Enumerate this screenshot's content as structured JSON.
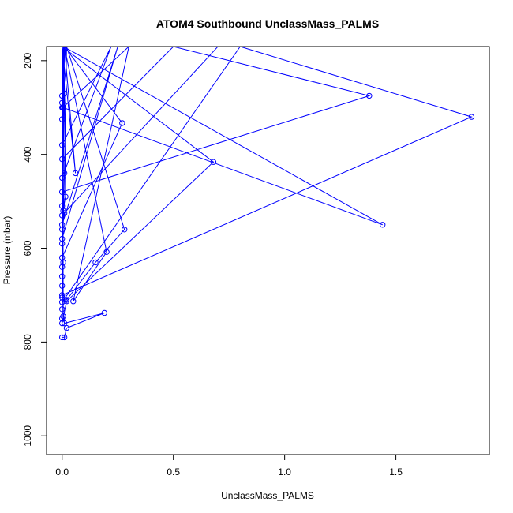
{
  "chart_data": {
    "type": "line",
    "title": "ATOM4 Southbound UnclassMass_PALMS",
    "xlabel": "UnclassMass_PALMS",
    "ylabel": "Pressure (mbar)",
    "xlim": [
      -0.07,
      1.92
    ],
    "ylim": [
      1040,
      170
    ],
    "y_reversed": true,
    "x_ticks": [
      0.0,
      0.5,
      1.0,
      1.5
    ],
    "x_tick_labels": [
      "0.0",
      "0.5",
      "1.0",
      "1.5"
    ],
    "y_ticks": [
      200,
      400,
      600,
      800,
      1000
    ],
    "y_tick_labels": [
      "200",
      "400",
      "600",
      "800",
      "1000"
    ],
    "grid": false,
    "series": [
      {
        "color": "#0000ff",
        "points": [
          [
            0.0,
            790
          ],
          [
            0.01,
            790
          ],
          [
            0.02,
            770
          ],
          [
            0.19,
            738
          ],
          [
            0.01,
            760
          ],
          [
            0.005,
            745
          ],
          [
            0.003,
            300
          ],
          [
            0.3,
            170
          ],
          [
            0.05,
            713
          ],
          [
            0.2,
            608
          ],
          [
            0.01,
            170
          ],
          [
            0.0,
            760
          ],
          [
            0.02,
            713
          ],
          [
            0.68,
            416
          ],
          [
            0.0,
            170
          ],
          [
            0.0,
            705
          ],
          [
            0.0,
            700
          ],
          [
            1.84,
            320
          ],
          [
            0.8,
            170
          ],
          [
            0.0,
            715
          ],
          [
            0.02,
            710
          ],
          [
            0.15,
            630
          ],
          [
            0.28,
            560
          ],
          [
            0.02,
            170
          ],
          [
            0.01,
            440
          ],
          [
            0.0,
            660
          ],
          [
            0.01,
            170
          ],
          [
            0.0,
            590
          ],
          [
            0.005,
            300
          ],
          [
            1.44,
            550
          ],
          [
            0.006,
            170
          ],
          [
            0.0,
            560
          ],
          [
            0.0,
            620
          ],
          [
            0.27,
            333
          ],
          [
            0.01,
            170
          ],
          [
            0.06,
            440
          ],
          [
            0.0,
            170
          ],
          [
            0.7,
            170
          ],
          [
            0.0,
            530
          ],
          [
            0.015,
            490
          ],
          [
            0.008,
            170
          ],
          [
            0.0,
            640
          ],
          [
            0.0,
            480
          ],
          [
            1.38,
            275
          ],
          [
            0.5,
            170
          ],
          [
            0.0,
            410
          ],
          [
            0.005,
            170
          ],
          [
            0.0,
            580
          ],
          [
            0.25,
            170
          ],
          [
            0.0,
            550
          ],
          [
            0.01,
            525
          ],
          [
            0.005,
            520
          ],
          [
            0.0,
            170
          ],
          [
            0.0,
            450
          ],
          [
            0.22,
            170
          ],
          [
            0.0,
            380
          ],
          [
            0.0,
            325
          ],
          [
            0.0,
            300
          ],
          [
            0.0,
            290
          ],
          [
            0.0,
            275
          ],
          [
            0.01,
            270
          ],
          [
            0.0,
            170
          ],
          [
            0.0,
            510
          ],
          [
            0.005,
            630
          ],
          [
            0.0,
            680
          ],
          [
            0.0,
            730
          ],
          [
            0.0,
            750
          ]
        ]
      }
    ]
  }
}
